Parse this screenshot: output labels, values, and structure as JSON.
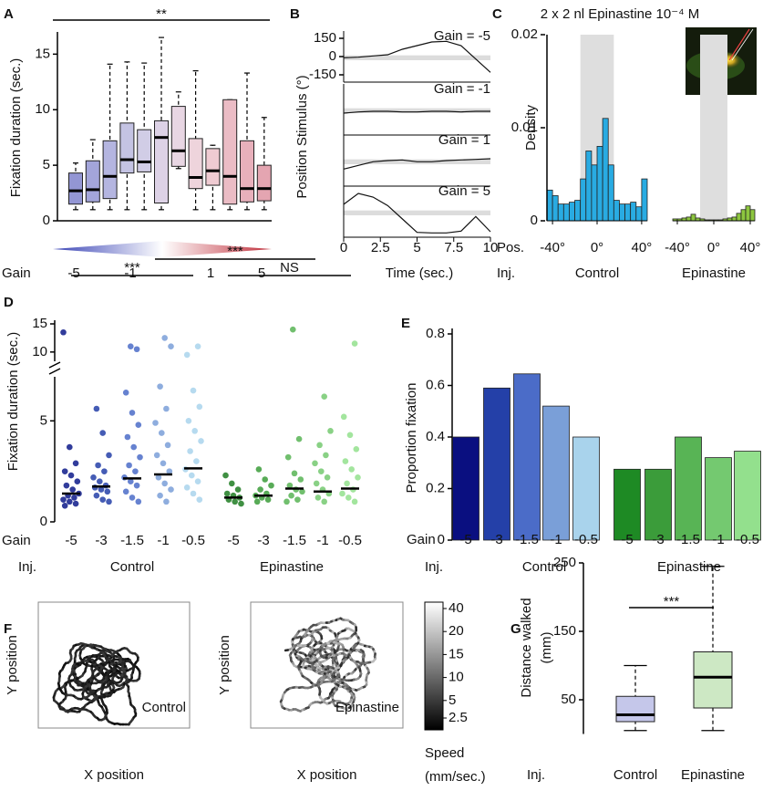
{
  "chart_data": [
    {
      "type": "box",
      "label": "A",
      "ylabel": "Fixation duration (sec.)",
      "ylim": [
        0,
        17
      ],
      "yticks": [
        0,
        5,
        10,
        15
      ],
      "significance": "**",
      "boxes": [
        {
          "color": "#9396d4",
          "min": 1,
          "q1": 1.5,
          "median": 2.7,
          "q3": 4.3,
          "max": 5.2
        },
        {
          "color": "#a3a5da",
          "min": 1,
          "q1": 1.7,
          "median": 2.8,
          "q3": 5.4,
          "max": 7.3
        },
        {
          "color": "#b4b5e0",
          "min": 1,
          "q1": 2,
          "median": 4,
          "q3": 7.2,
          "max": 14.1
        },
        {
          "color": "#c4c3e3",
          "min": 1,
          "q1": 4.3,
          "median": 5.5,
          "q3": 8.8,
          "max": 14.3
        },
        {
          "color": "#d1cde6",
          "min": 1,
          "q1": 4.4,
          "median": 5.3,
          "q3": 8.2,
          "max": 14.2
        },
        {
          "color": "#ddd2e6",
          "min": 1,
          "q1": 1.6,
          "median": 7.5,
          "q3": 9,
          "max": 16.5
        },
        {
          "color": "#e8d6e3",
          "min": 4.7,
          "q1": 4.9,
          "median": 6.3,
          "q3": 10.3,
          "max": 11.6
        },
        {
          "color": "#eed4dc",
          "min": 1,
          "q1": 2.9,
          "median": 3.9,
          "q3": 7.4,
          "max": 13.5
        },
        {
          "color": "#efcbd2",
          "min": 1,
          "q1": 3.2,
          "median": 4.5,
          "q3": 6.5,
          "max": 6.8
        },
        {
          "color": "#ebbcc5",
          "min": 1,
          "q1": 1.5,
          "median": 4,
          "q3": 10.9,
          "max": 10.9
        },
        {
          "color": "#e8b0bb",
          "min": 1,
          "q1": 1.7,
          "median": 2.9,
          "q3": 7.2,
          "max": 13.3
        },
        {
          "color": "#e4a5b1",
          "min": 1,
          "q1": 1.8,
          "median": 2.9,
          "q3": 5,
          "max": 9.3
        }
      ],
      "colorbar": {
        "title": "Gain",
        "ticks": [
          -5,
          -1,
          1,
          5
        ],
        "colors": [
          "#3b45b6",
          "#ffffff",
          "#c0303c"
        ]
      }
    },
    {
      "type": "line",
      "label": "B",
      "ylabel": "Position Stimulus (°)",
      "xlabel": "Time (sec.)",
      "xlim": [
        0,
        10
      ],
      "xticks": [
        0,
        2.5,
        5,
        7.5,
        10
      ],
      "ylim": [
        -180,
        180
      ],
      "yticks": [
        150,
        0,
        -150
      ],
      "band": [
        -30,
        10
      ],
      "x": [
        0,
        1,
        2,
        3,
        4,
        5,
        6,
        7,
        8,
        9,
        10
      ],
      "series": [
        {
          "name": "Gain = -5",
          "color": "#1b1f8a",
          "values": [
            -10,
            -5,
            5,
            15,
            60,
            90,
            120,
            125,
            90,
            -20,
            -130
          ]
        },
        {
          "name": "Gain = -1",
          "color": "#5b63d6",
          "values": [
            -30,
            -20,
            -15,
            -15,
            -20,
            -20,
            -15,
            -15,
            -20,
            -15,
            -15
          ]
        },
        {
          "name": "Gain = 1",
          "color": "#e8566a",
          "values": [
            -70,
            -40,
            -10,
            0,
            5,
            -10,
            -10,
            0,
            5,
            10,
            15
          ]
        },
        {
          "name": "Gain = 5",
          "color": "#b0202a",
          "values": [
            60,
            150,
            120,
            50,
            -60,
            -170,
            -175,
            -175,
            -160,
            -40,
            -165
          ]
        }
      ]
    },
    {
      "type": "histogram",
      "label": "C",
      "title": "2 x 2 nl Epinastine 10⁻⁴ M",
      "ylabel": "Density",
      "ylim": [
        0,
        0.02
      ],
      "yticks": [
        0,
        0.01,
        0.02
      ],
      "row_labels": [
        "Pos.",
        "Inj."
      ],
      "shade": [
        -15,
        15
      ],
      "bins": [
        -45,
        -40,
        -35,
        -30,
        -25,
        -20,
        -15,
        -10,
        -5,
        0,
        5,
        10,
        15,
        20,
        25,
        30,
        35,
        40,
        45
      ],
      "xticks": [
        {
          "value": -40,
          "label": "-40°"
        },
        {
          "value": 0,
          "label": "0°"
        },
        {
          "value": 40,
          "label": "40°"
        }
      ],
      "series": [
        {
          "name": "Control",
          "color": "#29abe2",
          "values": [
            0.0033,
            0.0027,
            0.0018,
            0.0018,
            0.002,
            0.0022,
            0.0045,
            0.0075,
            0.006,
            0.008,
            0.011,
            0.006,
            0.0022,
            0.0018,
            0.0018,
            0.002,
            0.0015,
            0.0045
          ]
        },
        {
          "name": "Epinastine",
          "color": "#8dc63f",
          "values": [
            0.0002,
            0.0002,
            0.0003,
            0.0004,
            0.0007,
            0.0003,
            0.0002,
            0.0001,
            0.0001,
            0.0001,
            0.0001,
            0.0002,
            0.0003,
            0.0004,
            0.0008,
            0.0012,
            0.0016,
            0.0012
          ]
        }
      ]
    },
    {
      "type": "strip",
      "label": "D",
      "ylabel": "Fixation duration (sec.)",
      "ylim": [
        0,
        15
      ],
      "ybreak": [
        7,
        9
      ],
      "yticks": [
        0,
        5,
        10,
        15
      ],
      "row_labels": [
        "Gain",
        "Inj."
      ],
      "significance": [
        "***",
        "***",
        "NS"
      ],
      "categories": [
        "-5",
        "-3",
        "-1.5",
        "-1",
        "-0.5",
        "-5",
        "-3",
        "-1.5",
        "-1",
        "-0.5"
      ],
      "series": [
        {
          "name": "Control",
          "colors": [
            "#0d1a8a",
            "#2440a8",
            "#4b6cc8",
            "#7a9fd8",
            "#a9d3ec"
          ],
          "medians": [
            1.4,
            1.75,
            2.15,
            2.35,
            2.65
          ],
          "values": [
            [
              13.5,
              3.7,
              2.9,
              2.5,
              2.3,
              2,
              1.8,
              1.6,
              1.4,
              1.3,
              1.2,
              1.1,
              1,
              0.9,
              0.8
            ],
            [
              5.6,
              4.4,
              3.3,
              2.8,
              2.5,
              2.2,
              2,
              1.8,
              1.7,
              1.6,
              1.5,
              1.3,
              1.1,
              1
            ],
            [
              11,
              10.5,
              6.4,
              5.4,
              4.8,
              4.2,
              3.7,
              3.2,
              2.8,
              2.5,
              2.2,
              2,
              1.8,
              1.5,
              1.2,
              1
            ],
            [
              12.5,
              11,
              6.7,
              5.6,
              4.9,
              4.4,
              3.8,
              3.3,
              2.9,
              2.5,
              2.2,
              1.9,
              1.6,
              1.3,
              1
            ],
            [
              11,
              9.5,
              6.5,
              5.7,
              5,
              4.5,
              4,
              3.5,
              3,
              2.6,
              2.3,
              2,
              1.7,
              1.4,
              1.1
            ]
          ]
        },
        {
          "name": "Epinastine",
          "colors": [
            "#1e7d22",
            "#3b9c3a",
            "#58b455",
            "#74c970",
            "#93e08d"
          ],
          "medians": [
            1.2,
            1.3,
            1.65,
            1.5,
            1.65
          ],
          "values": [
            [
              2.3,
              1.9,
              1.6,
              1.4,
              1.3,
              1.2,
              1.1,
              1,
              0.9
            ],
            [
              2.6,
              2.1,
              1.8,
              1.6,
              1.4,
              1.3,
              1.2,
              1.1,
              1
            ],
            [
              14,
              4.1,
              3.2,
              2.4,
              2.1,
              1.8,
              1.6,
              1.5,
              1.3,
              1.1,
              1
            ],
            [
              6.2,
              4.5,
              3.8,
              3.3,
              2.9,
              2.5,
              2.2,
              1.9,
              1.6,
              1.4,
              1.2,
              1
            ],
            [
              11.5,
              5.2,
              4.3,
              3.6,
              3,
              2.6,
              2.2,
              1.9,
              1.6,
              1.4,
              1.2,
              1
            ]
          ]
        }
      ]
    },
    {
      "type": "bar",
      "label": "E",
      "ylabel": "Proportion fixation",
      "ylim": [
        0,
        0.8
      ],
      "yticks": [
        0,
        0.2,
        0.4,
        0.6,
        0.8
      ],
      "row_labels": [
        "Gain",
        "Inj."
      ],
      "groups": [
        "Control",
        "Epinastine"
      ],
      "categories": [
        "-5",
        "-3",
        "-1.5",
        "-1",
        "-0.5",
        "-5",
        "-3",
        "-1.5",
        "-1",
        "-0.5"
      ],
      "values": [
        0.4,
        0.59,
        0.645,
        0.52,
        0.4,
        0.275,
        0.275,
        0.4,
        0.32,
        0.345
      ],
      "colors": [
        "#0a0f80",
        "#2440a8",
        "#4b6cc8",
        "#7a9fd8",
        "#a9d3ec",
        "#1e8a24",
        "#3b9c3a",
        "#58b455",
        "#74c970",
        "#93e08d"
      ]
    },
    {
      "type": "trajectory",
      "label": "F",
      "xlabel": "X position",
      "ylabel": "Y position",
      "conditions": [
        {
          "name": "Control",
          "color": "#1c2a8c"
        },
        {
          "name": "Epinastine",
          "color": "#3aa83a"
        }
      ],
      "colorbar": {
        "title": [
          "Speed",
          "(mm/sec.)"
        ],
        "ticks": [
          40,
          20,
          15,
          10,
          5,
          2.5
        ]
      }
    },
    {
      "type": "box",
      "label": "G",
      "ylabel": [
        "Distance walked",
        "(mm)"
      ],
      "ylim": [
        0,
        250
      ],
      "yticks": [
        50,
        150,
        250
      ],
      "significance": "***",
      "categories": [
        "Control",
        "Epinastine"
      ],
      "row_label": "Inj.",
      "boxes": [
        {
          "color": "#c5c7ea",
          "min": 5,
          "q1": 18,
          "median": 28,
          "q3": 55,
          "max": 100
        },
        {
          "color": "#cde8c4",
          "min": 5,
          "q1": 38,
          "median": 83,
          "q3": 120,
          "max": 245
        }
      ]
    }
  ]
}
